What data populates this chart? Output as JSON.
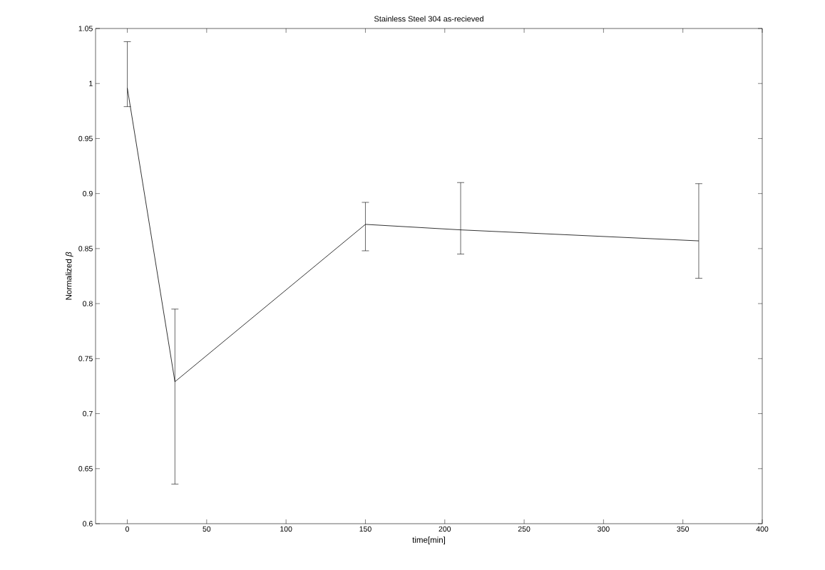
{
  "chart_data": {
    "type": "line",
    "title": "Stainless Steel 304 as-recieved",
    "xlabel": "time[min]",
    "ylabel": "Normalized *β*",
    "x": [
      0,
      30,
      150,
      210,
      360
    ],
    "values": [
      0.996,
      0.729,
      0.872,
      0.867,
      0.857
    ],
    "errors": [
      [
        0.979,
        1.038
      ],
      [
        0.636,
        0.795
      ],
      [
        0.848,
        0.892
      ],
      [
        0.845,
        0.91
      ],
      [
        0.823,
        0.909
      ]
    ],
    "color": "#000000",
    "xlim": [
      -20,
      400
    ],
    "xticks": [
      0,
      50,
      100,
      150,
      200,
      250,
      300,
      350,
      400
    ],
    "ylim": [
      0.6,
      1.05
    ],
    "yticks": [
      0.6,
      0.65,
      0.7,
      0.75,
      0.8,
      0.85,
      0.9,
      0.95,
      1,
      1.05
    ],
    "grid": false,
    "marker": "none",
    "line_style": "solid"
  }
}
